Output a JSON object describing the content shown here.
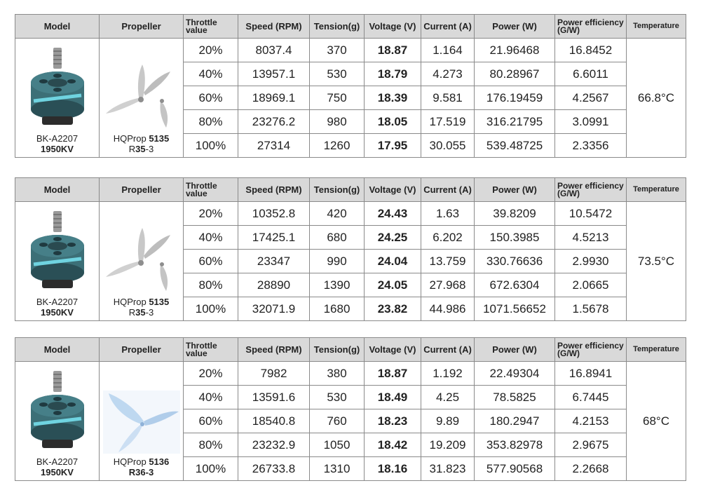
{
  "headers": [
    "Model",
    "Propeller",
    "Throttle value",
    "Speed (RPM)",
    "Tension(g)",
    "Voltage (V)",
    "Current (A)",
    "Power (W)",
    "Power efficiency (G/W)",
    "Temperature"
  ],
  "tables": [
    {
      "model": {
        "line1": "BK-A2207",
        "line2": "1950KV"
      },
      "propeller": {
        "line1_prefix": "HQProp ",
        "line1_bold": "5135",
        "line2_prefix": "R",
        "line2_bold": "35",
        "line2_suffix": "-3"
      },
      "temperature": "66.8°C",
      "rows": [
        [
          "20%",
          "8037.4",
          "370",
          "18.87",
          "1.164",
          "21.96468",
          "16.8452"
        ],
        [
          "40%",
          "13957.1",
          "530",
          "18.79",
          "4.273",
          "80.28967",
          "6.6011"
        ],
        [
          "60%",
          "18969.1",
          "750",
          "18.39",
          "9.581",
          "176.19459",
          "4.2567"
        ],
        [
          "80%",
          "23276.2",
          "980",
          "18.05",
          "17.519",
          "316.21795",
          "3.0991"
        ],
        [
          "100%",
          "27314",
          "1260",
          "17.95",
          "30.055",
          "539.48725",
          "2.3356"
        ]
      ]
    },
    {
      "model": {
        "line1": "BK-A2207",
        "line2": "1950KV"
      },
      "propeller": {
        "line1_prefix": "HQProp ",
        "line1_bold": "5135",
        "line2_prefix": "R",
        "line2_bold": "35",
        "line2_suffix": "-3"
      },
      "temperature": "73.5°C",
      "rows": [
        [
          "20%",
          "10352.8",
          "420",
          "24.43",
          "1.63",
          "39.8209",
          "10.5472"
        ],
        [
          "40%",
          "17425.1",
          "680",
          "24.25",
          "6.202",
          "150.3985",
          "4.5213"
        ],
        [
          "60%",
          "23347",
          "990",
          "24.04",
          "13.759",
          "330.76636",
          "2.9930"
        ],
        [
          "80%",
          "28890",
          "1390",
          "24.05",
          "27.968",
          "672.6304",
          "2.0665"
        ],
        [
          "100%",
          "32071.9",
          "1680",
          "23.82",
          "44.986",
          "1071.56652",
          "1.5678"
        ]
      ]
    },
    {
      "model": {
        "line1": "BK-A2207",
        "line2": "1950KV"
      },
      "propeller": {
        "line1_prefix": "HQProp ",
        "line1_bold": "5136",
        "line2_prefix": "",
        "line2_bold": "R36-3",
        "line2_suffix": ""
      },
      "temperature": "68°C",
      "rows": [
        [
          "20%",
          "7982",
          "380",
          "18.87",
          "1.192",
          "22.49304",
          "16.8941"
        ],
        [
          "40%",
          "13591.6",
          "530",
          "18.49",
          "4.25",
          "78.5825",
          "6.7445"
        ],
        [
          "60%",
          "18540.8",
          "760",
          "18.23",
          "9.89",
          "180.2947",
          "4.2153"
        ],
        [
          "80%",
          "23232.9",
          "1050",
          "18.42",
          "19.209",
          "353.82978",
          "2.9675"
        ],
        [
          "100%",
          "26733.8",
          "1310",
          "18.16",
          "31.823",
          "577.90568",
          "2.2668"
        ]
      ]
    }
  ],
  "colors": {
    "header_bg": "#d9d9d9",
    "border": "#8a8a8a",
    "motor_body": "#3c6f77",
    "motor_accent": "#6fd3e0",
    "prop_gray": "#c8c8c8",
    "prop_blue": "#b8d4ee"
  }
}
